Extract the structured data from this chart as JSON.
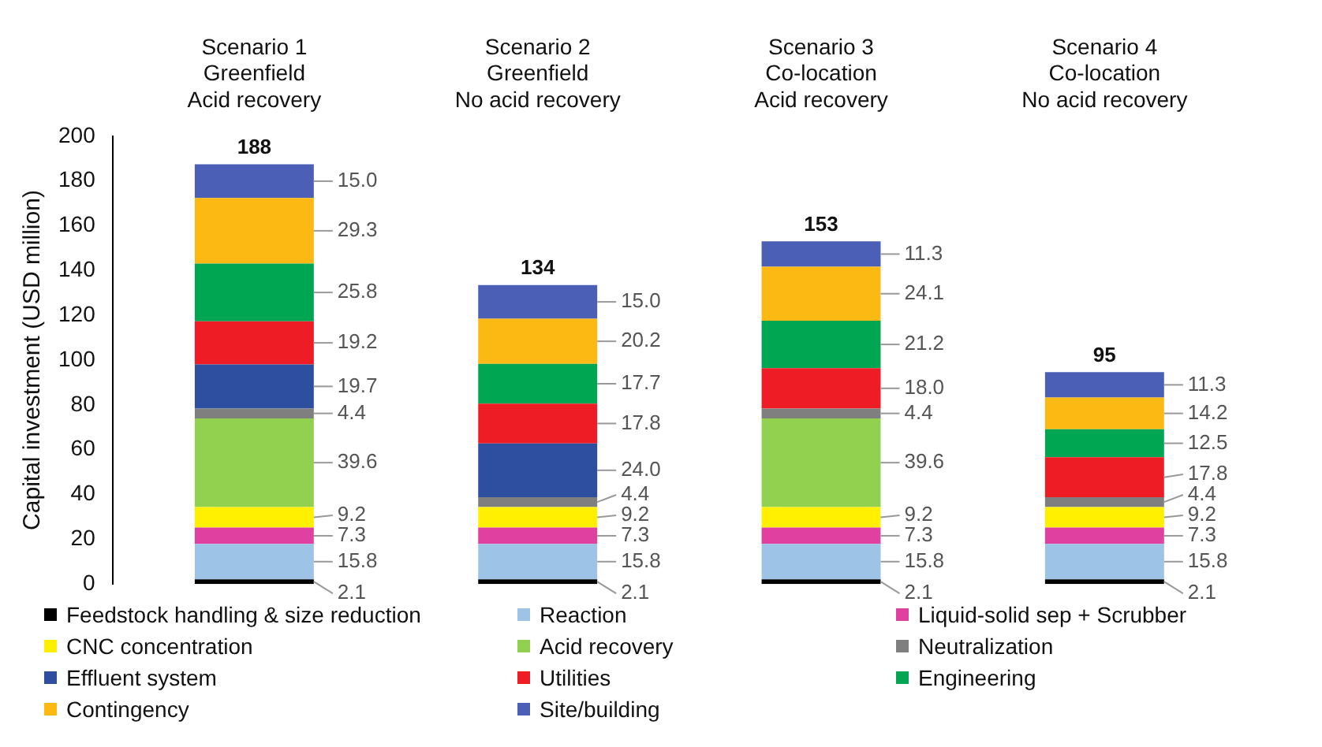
{
  "chart_data": {
    "type": "bar",
    "stacked": true,
    "ylabel": "Capital investment (USD million)",
    "categories": [
      "Scenario 1\nGreenfield\nAcid recovery",
      "Scenario 2\nGreenfield\nNo acid recovery",
      "Scenario 3\nCo-location\nAcid recovery",
      "Scenario 4\nCo-location\nNo acid recovery"
    ],
    "ylim": [
      0,
      200
    ],
    "yticks": [
      0,
      20,
      40,
      60,
      80,
      100,
      120,
      140,
      160,
      180,
      200
    ],
    "grid": false,
    "legend": "bottom",
    "totals": [
      "188",
      "134",
      "153",
      "95"
    ],
    "series": [
      {
        "name": "Feedstock handling & size reduction",
        "color": "#000000",
        "values": [
          2.1,
          2.1,
          2.1,
          2.1
        ],
        "value_labels": [
          "2.1",
          "2.1",
          "2.1",
          "2.1"
        ]
      },
      {
        "name": "Reaction",
        "color": "#9dc3e6",
        "values": [
          15.8,
          15.8,
          15.8,
          15.8
        ],
        "value_labels": [
          "15.8",
          "15.8",
          "15.8",
          "15.8"
        ]
      },
      {
        "name": "Liquid-solid sep + Scrubber",
        "color": "#e040a0",
        "values": [
          7.3,
          7.3,
          7.3,
          7.3
        ],
        "value_labels": [
          "7.3",
          "7.3",
          "7.3",
          "7.3"
        ]
      },
      {
        "name": "CNC concentration",
        "color": "#ffef00",
        "values": [
          9.2,
          9.2,
          9.2,
          9.2
        ],
        "value_labels": [
          "9.2",
          "9.2",
          "9.2",
          "9.2"
        ]
      },
      {
        "name": "Acid recovery",
        "color": "#92d050",
        "values": [
          39.6,
          null,
          39.6,
          null
        ],
        "value_labels": [
          "39.6",
          null,
          "39.6",
          null
        ]
      },
      {
        "name": "Neutralization",
        "color": "#7f7f7f",
        "values": [
          4.4,
          4.4,
          4.4,
          4.4
        ],
        "value_labels": [
          "4.4",
          "4.4",
          "4.4",
          "4.4"
        ]
      },
      {
        "name": "Effluent system",
        "color": "#2e4fa0",
        "values": [
          19.7,
          24.0,
          null,
          null
        ],
        "value_labels": [
          "19.7",
          "24.0",
          null,
          null
        ]
      },
      {
        "name": "Utilities",
        "color": "#ee1c24",
        "values": [
          19.2,
          17.8,
          18.0,
          17.8
        ],
        "value_labels": [
          "19.2",
          "17.8",
          "18.0",
          "17.8"
        ]
      },
      {
        "name": "Engineering",
        "color": "#00a651",
        "values": [
          25.8,
          17.7,
          21.2,
          12.5
        ],
        "value_labels": [
          "25.8",
          "17.7",
          "21.2",
          "12.5"
        ]
      },
      {
        "name": "Contingency",
        "color": "#fdb913",
        "values": [
          29.3,
          20.2,
          24.1,
          14.2
        ],
        "value_labels": [
          "29.3",
          "20.2",
          "24.1",
          "14.2"
        ]
      },
      {
        "name": "Site/building",
        "color": "#4a5fb5",
        "values": [
          15.0,
          15.0,
          11.3,
          11.3
        ],
        "value_labels": [
          "15.0",
          "15.0",
          "11.3",
          "11.3"
        ]
      }
    ]
  }
}
